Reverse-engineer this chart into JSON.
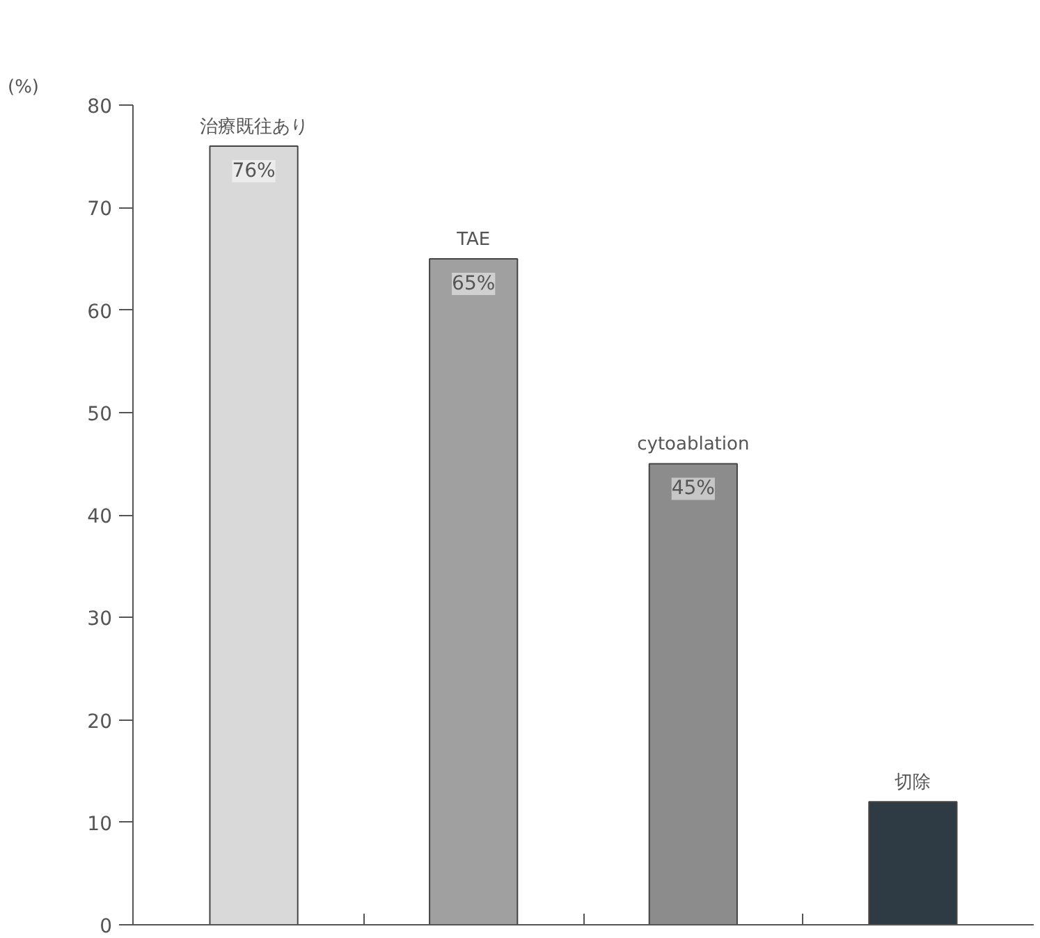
{
  "chart_data": {
    "type": "bar",
    "ylabel": "(%)",
    "categories": [
      "治療既往あり",
      "TAE",
      "cytoablation",
      "切除"
    ],
    "values": [
      76,
      65,
      45,
      12
    ],
    "value_labels": [
      "76%",
      "65%",
      "45%",
      null
    ],
    "colors": [
      "#d9d9d9",
      "#a0a0a0",
      "#8c8c8c",
      "#2e3b44"
    ],
    "ylim": [
      0,
      80
    ],
    "yticks": [
      0,
      10,
      20,
      30,
      40,
      50,
      60,
      70,
      80
    ],
    "grid": false
  }
}
